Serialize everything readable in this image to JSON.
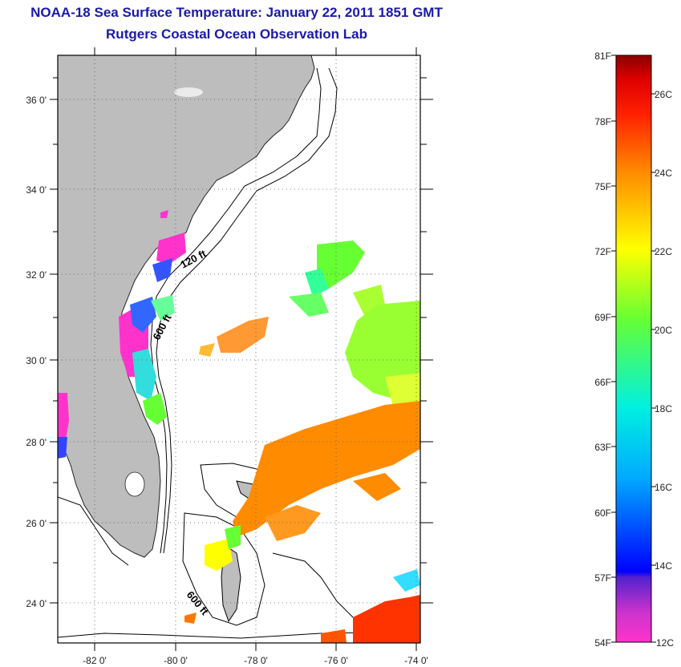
{
  "header": {
    "title": "NOAA-18 Sea Surface Temperature:  January 22, 2011 1851 GMT",
    "subtitle": "Rutgers Coastal Ocean Observation Lab"
  },
  "map": {
    "lat_labels": [
      "36 0'",
      "34 0'",
      "32 0'",
      "30 0'",
      "28 0'",
      "26 0'",
      "24 0'"
    ],
    "lon_labels": [
      "-82 0'",
      "-80 0'",
      "-78 0'",
      "-76 0'",
      "-74 0'"
    ],
    "isobath_labels": [
      "120 ft",
      "600 ft",
      "600 ft"
    ]
  },
  "colorbar": {
    "fahrenheit_labels": [
      "81F",
      "78F",
      "75F",
      "72F",
      "69F",
      "66F",
      "63F",
      "60F",
      "57F",
      "54F"
    ],
    "celsius_labels": [
      "26C",
      "24C",
      "22C",
      "20C",
      "18C",
      "16C",
      "14C",
      "12C"
    ],
    "colors": [
      "#8b0000",
      "#ff0000",
      "#ff8c00",
      "#ffff00",
      "#66ff33",
      "#00e5e5",
      "#0000ff",
      "#ff33cc"
    ]
  }
}
